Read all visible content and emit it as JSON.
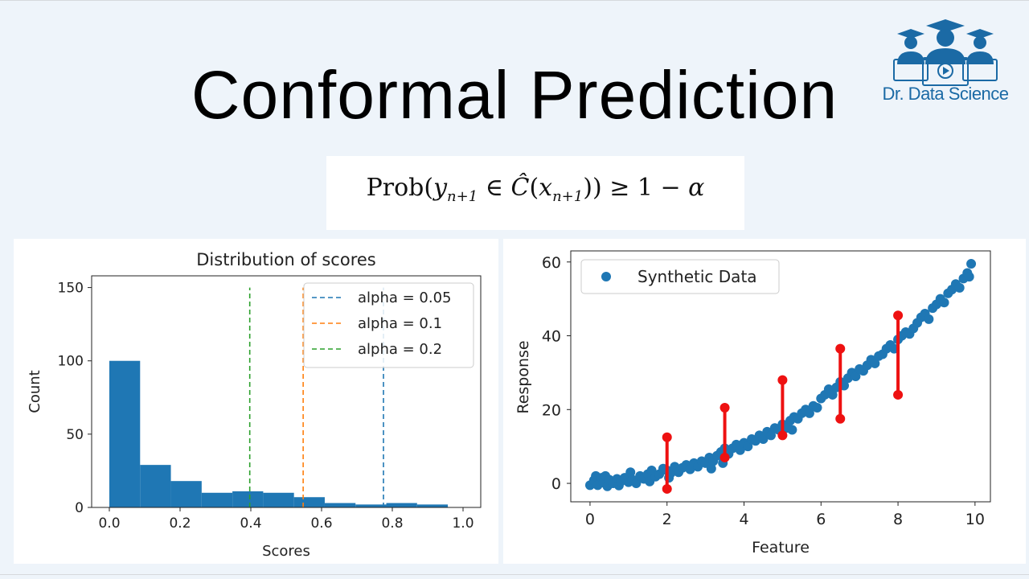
{
  "header": {
    "title": "Conformal Prediction",
    "formula": {
      "prefix": "Prob",
      "y": "y",
      "y_sub": "n+1",
      "member": "∈",
      "c_hat": "Ĉ",
      "x": "x",
      "x_sub": "n+1",
      "ge": "≥ 1 −",
      "alpha": "α"
    },
    "logo_text": "Dr. Data Science",
    "logo_icon": "graduates-laptop-icon"
  },
  "chart_data": [
    {
      "type": "bar",
      "title": "Distribution of scores",
      "xlabel": "Scores",
      "ylabel": "Count",
      "xlim": [
        -0.05,
        1.05
      ],
      "ylim": [
        0,
        158
      ],
      "xticks": [
        0.0,
        0.2,
        0.4,
        0.6,
        0.8,
        1.0
      ],
      "xtick_labels": [
        "0.0",
        "0.2",
        "0.4",
        "0.6",
        "0.8",
        "1.0"
      ],
      "yticks": [
        0,
        50,
        100,
        150
      ],
      "ytick_labels": [
        "0",
        "50",
        "100",
        "150"
      ],
      "bins": [
        0.0,
        0.087,
        0.174,
        0.261,
        0.348,
        0.435,
        0.522,
        0.609,
        0.696,
        0.783,
        0.87,
        0.957
      ],
      "counts": [
        100,
        29,
        18,
        10,
        11,
        10,
        7,
        3,
        2,
        3,
        2
      ],
      "bar_color": "#1f77b4",
      "vlines": [
        {
          "name": "alpha = 0.05",
          "x": 0.775,
          "color": "#1f77b4"
        },
        {
          "name": "alpha = 0.1",
          "x": 0.548,
          "color": "#ff7f0e"
        },
        {
          "name": "alpha = 0.2",
          "x": 0.397,
          "color": "#2ca02c"
        }
      ],
      "legend_position": "top-right",
      "grid": false
    },
    {
      "type": "scatter",
      "xlabel": "Feature",
      "ylabel": "Response",
      "xlim": [
        -0.5,
        10.4
      ],
      "ylim": [
        -5,
        63
      ],
      "xticks": [
        0,
        2,
        4,
        6,
        8,
        10
      ],
      "xtick_labels": [
        "0",
        "2",
        "4",
        "6",
        "8",
        "10"
      ],
      "yticks": [
        0,
        20,
        40,
        60
      ],
      "ytick_labels": [
        "0",
        "20",
        "40",
        "60"
      ],
      "series": [
        {
          "name": "Synthetic Data",
          "color": "#1f77b4",
          "points": [
            [
              0.0,
              -0.5
            ],
            [
              0.1,
              0.8
            ],
            [
              0.15,
              2.0
            ],
            [
              0.2,
              -0.5
            ],
            [
              0.3,
              1.5
            ],
            [
              0.35,
              0.2
            ],
            [
              0.4,
              2.0
            ],
            [
              0.45,
              -0.8
            ],
            [
              0.5,
              1.0
            ],
            [
              0.6,
              0.0
            ],
            [
              0.7,
              1.2
            ],
            [
              0.75,
              -0.6
            ],
            [
              0.8,
              0.5
            ],
            [
              0.9,
              1.5
            ],
            [
              1.0,
              0.3
            ],
            [
              1.05,
              3.0
            ],
            [
              1.1,
              1.0
            ],
            [
              1.2,
              0.0
            ],
            [
              1.3,
              2.0
            ],
            [
              1.4,
              1.2
            ],
            [
              1.5,
              2.5
            ],
            [
              1.55,
              0.5
            ],
            [
              1.6,
              3.5
            ],
            [
              1.7,
              1.8
            ],
            [
              1.8,
              2.5
            ],
            [
              1.9,
              4.0
            ],
            [
              2.0,
              3.5
            ],
            [
              2.05,
              1.5
            ],
            [
              2.1,
              2.8
            ],
            [
              2.2,
              4.5
            ],
            [
              2.3,
              3.0
            ],
            [
              2.4,
              4.2
            ],
            [
              2.5,
              5.0
            ],
            [
              2.6,
              3.8
            ],
            [
              2.7,
              5.5
            ],
            [
              2.8,
              4.5
            ],
            [
              2.9,
              6.0
            ],
            [
              3.0,
              5.5
            ],
            [
              3.1,
              7.0
            ],
            [
              3.15,
              4.0
            ],
            [
              3.2,
              6.0
            ],
            [
              3.3,
              7.5
            ],
            [
              3.4,
              8.5
            ],
            [
              3.45,
              5.5
            ],
            [
              3.5,
              9.5
            ],
            [
              3.6,
              8.0
            ],
            [
              3.7,
              9.5
            ],
            [
              3.8,
              10.5
            ],
            [
              3.9,
              9.0
            ],
            [
              4.0,
              11.0
            ],
            [
              4.1,
              10.0
            ],
            [
              4.2,
              12.0
            ],
            [
              4.3,
              11.5
            ],
            [
              4.4,
              13.0
            ],
            [
              4.5,
              12.0
            ],
            [
              4.6,
              14.0
            ],
            [
              4.7,
              13.0
            ],
            [
              4.8,
              15.0
            ],
            [
              4.9,
              14.5
            ],
            [
              5.0,
              16.0
            ],
            [
              5.1,
              15.0
            ],
            [
              5.2,
              17.0
            ],
            [
              5.25,
              14.5
            ],
            [
              5.3,
              18.0
            ],
            [
              5.4,
              17.5
            ],
            [
              5.5,
              19.0
            ],
            [
              5.6,
              20.0
            ],
            [
              5.7,
              19.0
            ],
            [
              5.8,
              21.0
            ],
            [
              5.9,
              20.5
            ],
            [
              6.0,
              23.0
            ],
            [
              6.1,
              24.0
            ],
            [
              6.2,
              25.5
            ],
            [
              6.3,
              24.0
            ],
            [
              6.4,
              26.0
            ],
            [
              6.5,
              27.5
            ],
            [
              6.6,
              26.5
            ],
            [
              6.7,
              28.5
            ],
            [
              6.8,
              30.0
            ],
            [
              6.9,
              29.0
            ],
            [
              7.0,
              31.0
            ],
            [
              7.1,
              30.5
            ],
            [
              7.2,
              32.0
            ],
            [
              7.3,
              33.5
            ],
            [
              7.4,
              32.5
            ],
            [
              7.5,
              34.5
            ],
            [
              7.6,
              35.0
            ],
            [
              7.7,
              36.5
            ],
            [
              7.8,
              37.5
            ],
            [
              7.9,
              36.5
            ],
            [
              8.0,
              39.0
            ],
            [
              8.1,
              40.0
            ],
            [
              8.2,
              41.0
            ],
            [
              8.3,
              40.5
            ],
            [
              8.4,
              42.0
            ],
            [
              8.5,
              43.5
            ],
            [
              8.6,
              45.0
            ],
            [
              8.7,
              46.0
            ],
            [
              8.8,
              44.5
            ],
            [
              8.9,
              47.5
            ],
            [
              9.0,
              48.5
            ],
            [
              9.1,
              50.0
            ],
            [
              9.2,
              49.0
            ],
            [
              9.3,
              51.5
            ],
            [
              9.4,
              52.5
            ],
            [
              9.5,
              54.0
            ],
            [
              9.6,
              53.0
            ],
            [
              9.7,
              55.5
            ],
            [
              9.8,
              57.0
            ],
            [
              9.85,
              56.0
            ],
            [
              9.9,
              59.5
            ]
          ]
        }
      ],
      "intervals": [
        {
          "x": 2.0,
          "low": -1.5,
          "high": 12.5
        },
        {
          "x": 3.5,
          "low": 7.0,
          "high": 20.5
        },
        {
          "x": 5.0,
          "low": 13.0,
          "high": 28.0
        },
        {
          "x": 6.5,
          "low": 17.5,
          "high": 36.5
        },
        {
          "x": 8.0,
          "low": 24.0,
          "high": 45.5
        }
      ],
      "interval_color": "#ee1111",
      "legend_position": "top-left",
      "grid": false
    }
  ]
}
